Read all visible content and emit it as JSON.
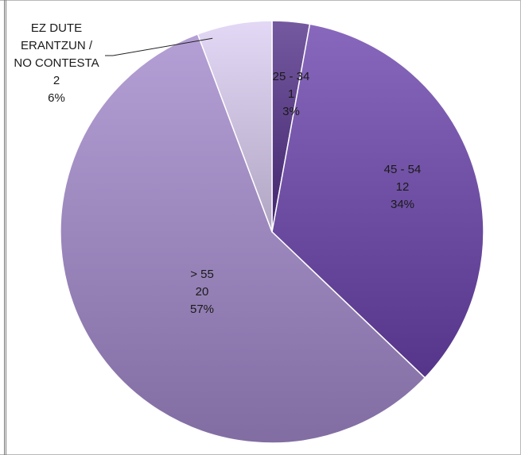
{
  "chart_data": {
    "type": "pie",
    "title": "",
    "slices": [
      {
        "category": "25 - 34",
        "value": 1,
        "percent": "3%",
        "color": "#5b3f86"
      },
      {
        "category": "45 - 54",
        "value": 12,
        "percent": "34%",
        "color": "#6e4ea2"
      },
      {
        "category": "> 55",
        "value": 20,
        "percent": "57%",
        "color": "#9a86bb"
      },
      {
        "category": "EZ DUTE ERANTZUN / NO CONTESTA",
        "category_lines": [
          "EZ DUTE",
          "ERANTZUN /",
          "NO CONTESTA"
        ],
        "value": 2,
        "percent": "6%",
        "color": "#c9bedb"
      }
    ],
    "legend": "none",
    "data_labels": "category, value, percent"
  }
}
